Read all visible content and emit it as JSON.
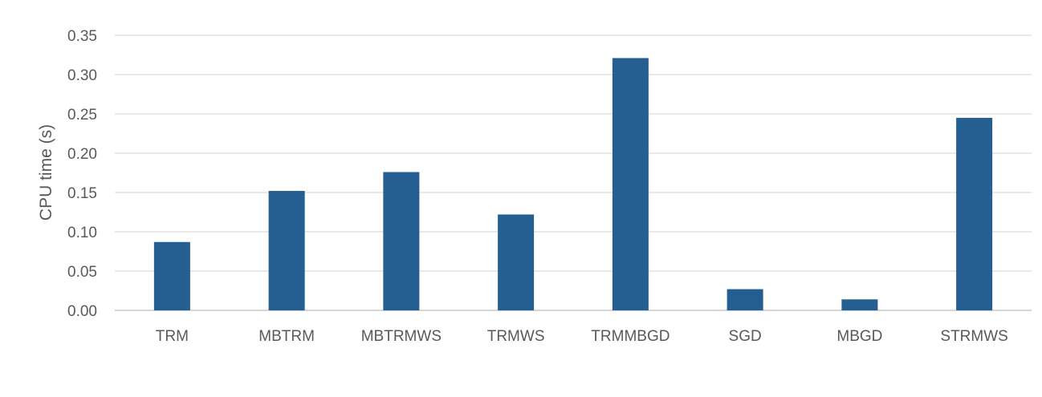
{
  "chart_data": {
    "type": "bar",
    "title": "",
    "xlabel": "",
    "ylabel": "CPU time (s)",
    "categories": [
      "TRM",
      "MBTRM",
      "MBTRMWS",
      "TRMWS",
      "TRMMBGD",
      "SGD",
      "MBGD",
      "STRMWS"
    ],
    "values": [
      0.087,
      0.152,
      0.176,
      0.122,
      0.321,
      0.027,
      0.014,
      0.245
    ],
    "ylim": [
      0,
      0.35
    ],
    "yticks": [
      "0.00",
      "0.05",
      "0.10",
      "0.15",
      "0.20",
      "0.25",
      "0.30",
      "0.35"
    ],
    "grid": true,
    "legend": "none",
    "bar_color": "#255e91"
  }
}
